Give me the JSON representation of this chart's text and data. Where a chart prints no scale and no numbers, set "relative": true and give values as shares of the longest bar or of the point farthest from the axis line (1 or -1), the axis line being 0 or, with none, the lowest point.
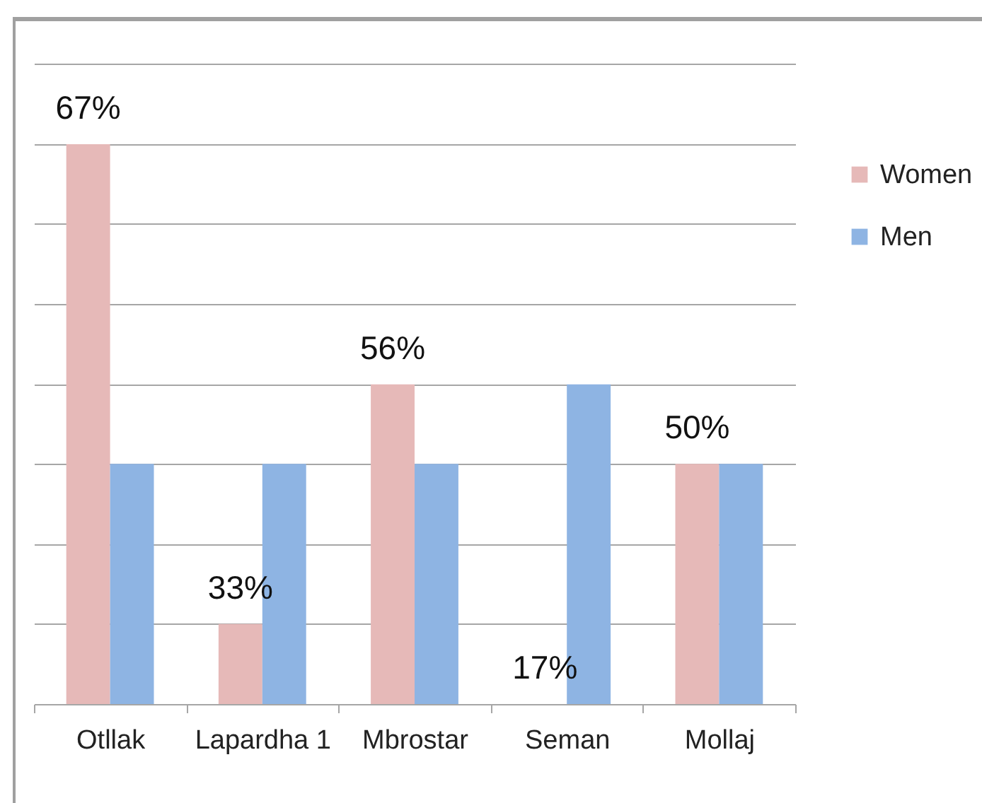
{
  "chart_data": {
    "type": "bar",
    "relative": true,
    "categories": [
      "Otllak",
      "Lapardha 1",
      "Mbrostar",
      "Seman",
      "Mollaj"
    ],
    "series": [
      {
        "name": "Women",
        "color": "#e6b9b8",
        "values": [
          1,
          0.143,
          0.571,
          0,
          0.429
        ]
      },
      {
        "name": "Men",
        "color": "#8eb4e3",
        "values": [
          0.429,
          0.429,
          0.429,
          0.571,
          0.429
        ]
      }
    ],
    "annotations": [
      {
        "text": "67%",
        "x": "Otllak",
        "y": 1
      },
      {
        "text": "33%",
        "x": "Lapardha 1",
        "y": 0.143
      },
      {
        "text": "56%",
        "x": "Mbrostar",
        "y": 0.571
      },
      {
        "text": "17%",
        "x": "Seman",
        "y": 0
      },
      {
        "text": "50%",
        "x": "Mollaj",
        "y": 0.429
      }
    ],
    "grid": "y",
    "legend": "right"
  }
}
